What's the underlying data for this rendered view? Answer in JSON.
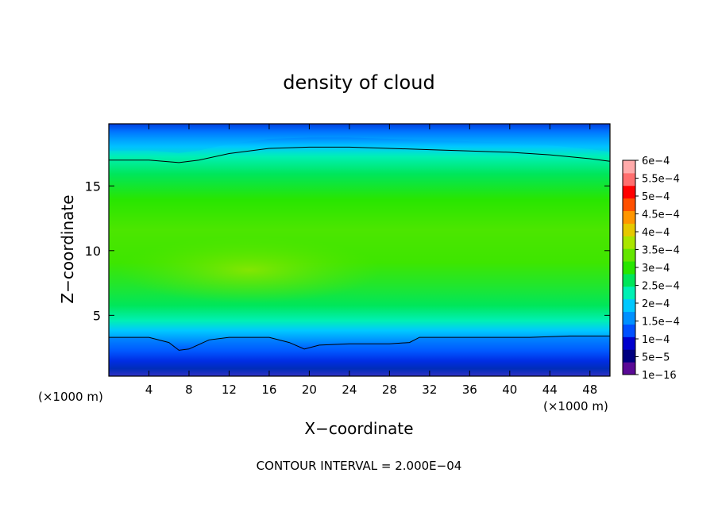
{
  "chart_data": {
    "type": "heatmap",
    "title": "density of cloud",
    "xlabel": "X−coordinate",
    "ylabel": "Z−coordinate",
    "x_unit_left": "(×1000 m)",
    "x_unit_right": "(×1000 m)",
    "footer": "CONTOUR INTERVAL = 2.000E−04",
    "xlim": [
      0,
      50
    ],
    "ylim": [
      0.3,
      19.8
    ],
    "x_ticks": [
      4,
      8,
      12,
      16,
      20,
      24,
      28,
      32,
      36,
      40,
      44,
      48
    ],
    "x_tick_labels": [
      "4",
      "8",
      "12",
      "16",
      "20",
      "24",
      "28",
      "32",
      "36",
      "40",
      "44",
      "48"
    ],
    "y_ticks": [
      5,
      10,
      15
    ],
    "y_tick_labels": [
      "5",
      "10",
      "15"
    ],
    "colorbar": {
      "levels": [
        "1e−16",
        "5e−5",
        "1e−4",
        "1.5e−4",
        "2e−4",
        "2.5e−4",
        "3e−4",
        "3.5e−4",
        "4e−4",
        "4.5e−4",
        "5e−4",
        "5.5e−4",
        "6e−4"
      ],
      "colors": [
        "#5a0a96",
        "#000080",
        "#0000cd",
        "#0050ff",
        "#0090ff",
        "#00c8ff",
        "#00f0b4",
        "#00e65a",
        "#28e600",
        "#64e600",
        "#aae600",
        "#e6c800",
        "#ff9600",
        "#ff5000",
        "#ff0000",
        "#ff6e6e",
        "#ffaaaa"
      ]
    },
    "contour_upper": {
      "x": [
        0,
        4,
        7,
        9,
        12,
        16,
        20,
        24,
        28,
        32,
        36,
        40,
        44,
        48,
        50
      ],
      "z": [
        17.0,
        17.0,
        16.8,
        17.0,
        17.5,
        17.9,
        18.0,
        18.0,
        17.9,
        17.8,
        17.7,
        17.6,
        17.4,
        17.1,
        16.9
      ]
    },
    "contour_lower": {
      "x": [
        0,
        4,
        6,
        7,
        8,
        10,
        12,
        16,
        18,
        19.5,
        21,
        24,
        28,
        30,
        31,
        34,
        38,
        42,
        46,
        50
      ],
      "z": [
        3.3,
        3.3,
        2.9,
        2.3,
        2.4,
        3.1,
        3.3,
        3.3,
        2.9,
        2.4,
        2.7,
        2.8,
        2.8,
        2.9,
        3.3,
        3.3,
        3.3,
        3.3,
        3.4,
        3.4
      ]
    }
  }
}
